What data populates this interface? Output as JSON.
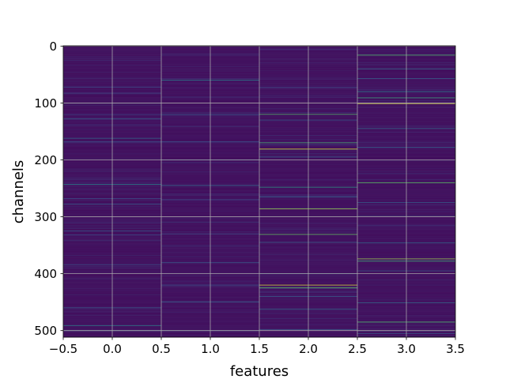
{
  "chart_data": {
    "type": "heatmap",
    "xlabel": "features",
    "ylabel": "channels",
    "xlim": [
      -0.5,
      3.5
    ],
    "ylim": [
      511.5,
      -0.5
    ],
    "x_ticks": [
      -0.5,
      0.0,
      0.5,
      1.0,
      1.5,
      2.0,
      2.5,
      3.0,
      3.5
    ],
    "x_tick_labels": [
      "−0.5",
      "0.0",
      "0.5",
      "1.0",
      "1.5",
      "2.0",
      "2.5",
      "3.0",
      "3.5"
    ],
    "y_ticks": [
      0,
      100,
      200,
      300,
      400,
      500
    ],
    "y_tick_labels": [
      "0",
      "100",
      "200",
      "300",
      "400",
      "500"
    ],
    "grid": true,
    "colormap": "viridis",
    "n_rows": 512,
    "n_cols": 4,
    "background_level": 0.04,
    "highlights": [
      {
        "col": 0,
        "bands": [
          [
            72,
            0.25
          ],
          [
            128,
            0.3
          ],
          [
            162,
            0.35
          ],
          [
            168,
            0.25
          ],
          [
            243,
            0.45
          ],
          [
            268,
            0.25
          ],
          [
            278,
            0.3
          ],
          [
            325,
            0.3
          ],
          [
            332,
            0.25
          ],
          [
            384,
            0.25
          ],
          [
            460,
            0.3
          ],
          [
            491,
            0.45
          ],
          [
            500,
            0.3
          ]
        ]
      },
      {
        "col": 1,
        "bands": [
          [
            60,
            0.45
          ],
          [
            120,
            0.3
          ],
          [
            168,
            0.25
          ],
          [
            200,
            0.25
          ],
          [
            245,
            0.35
          ],
          [
            270,
            0.25
          ],
          [
            330,
            0.25
          ],
          [
            380,
            0.3
          ],
          [
            420,
            0.25
          ],
          [
            450,
            0.3
          ],
          [
            500,
            0.35
          ]
        ]
      },
      {
        "col": 2,
        "bands": [
          [
            73,
            0.25
          ],
          [
            120,
            0.7
          ],
          [
            130,
            0.3
          ],
          [
            170,
            0.65
          ],
          [
            181,
            0.95
          ],
          [
            195,
            0.3
          ],
          [
            248,
            0.55
          ],
          [
            265,
            0.3
          ],
          [
            286,
            0.85
          ],
          [
            331,
            0.75
          ],
          [
            345,
            0.3
          ],
          [
            400,
            0.35
          ],
          [
            420,
            0.95
          ],
          [
            425,
            0.75
          ],
          [
            440,
            0.3
          ],
          [
            462,
            0.35
          ],
          [
            498,
            0.3
          ]
        ]
      },
      {
        "col": 3,
        "bands": [
          [
            16,
            0.7
          ],
          [
            40,
            0.35
          ],
          [
            57,
            0.3
          ],
          [
            80,
            0.45
          ],
          [
            91,
            0.6
          ],
          [
            101,
            0.95
          ],
          [
            145,
            0.35
          ],
          [
            178,
            0.3
          ],
          [
            240,
            0.75
          ],
          [
            275,
            0.3
          ],
          [
            346,
            0.35
          ],
          [
            374,
            0.85
          ],
          [
            378,
            0.65
          ],
          [
            395,
            0.3
          ],
          [
            451,
            0.35
          ],
          [
            485,
            0.7
          ],
          [
            505,
            0.3
          ]
        ]
      }
    ]
  }
}
